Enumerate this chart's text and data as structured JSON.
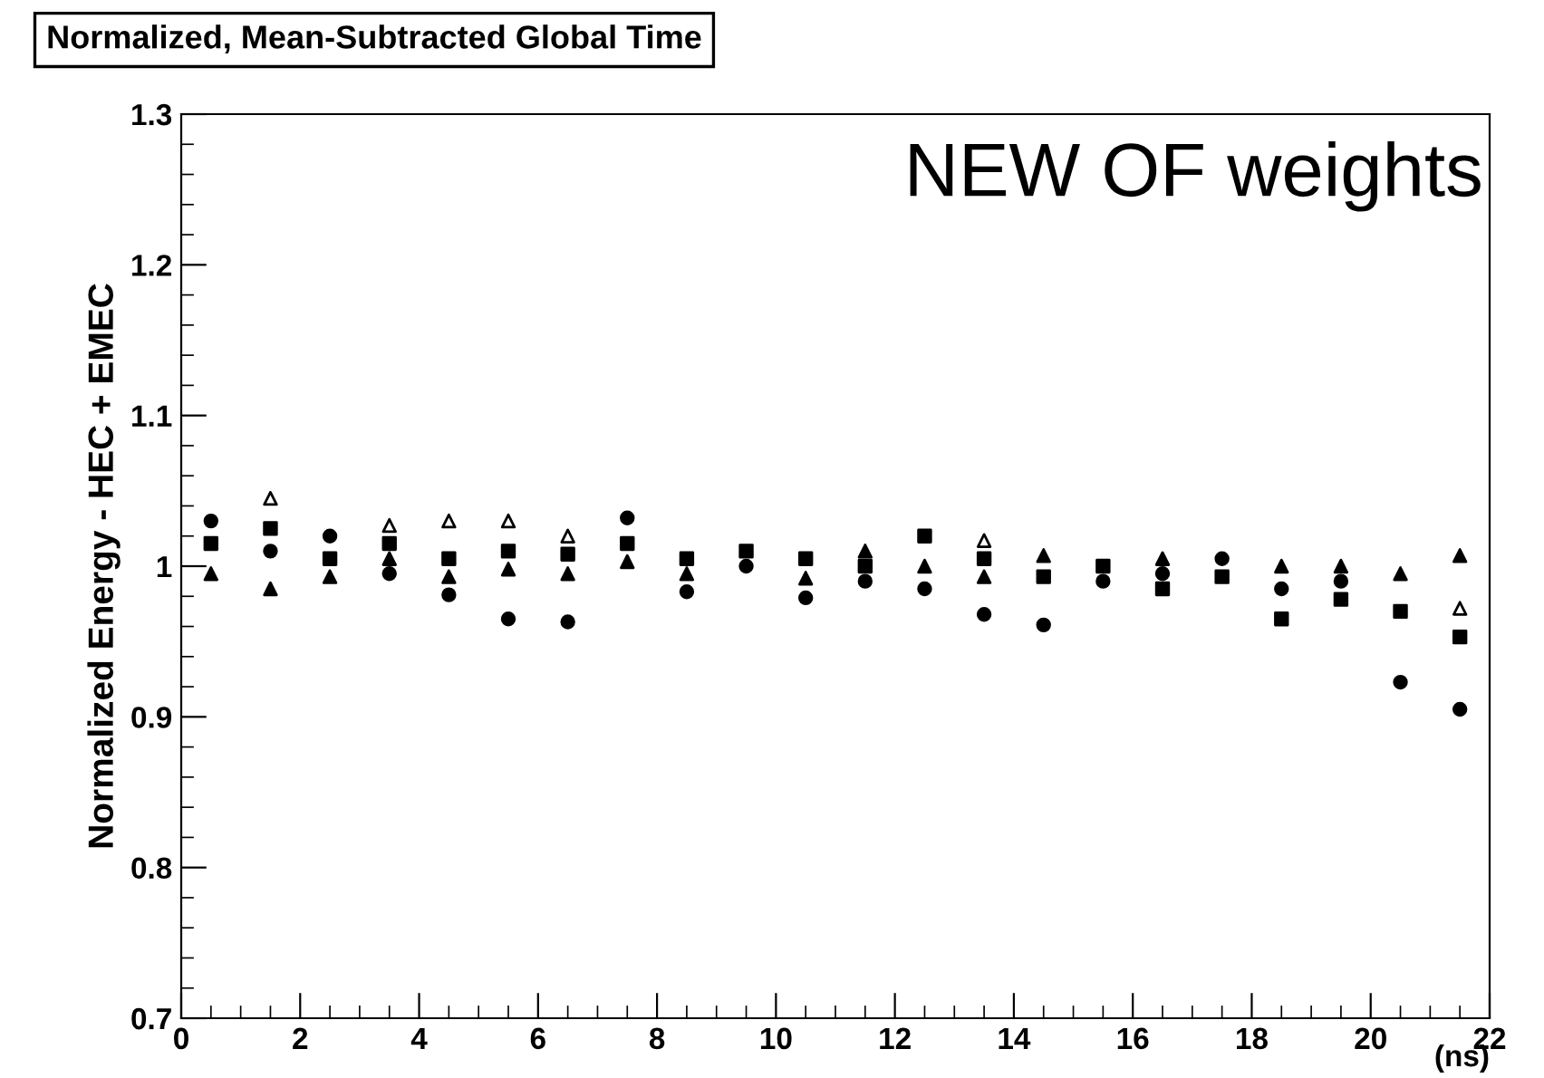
{
  "chart_data": {
    "type": "scatter",
    "title": "Normalized, Mean-Subtracted Global Time",
    "ylabel": "Normalized Energy - HEC + EMEC",
    "xlabel": "(ns)",
    "annotations": [
      "NEW OF weights"
    ],
    "x": [
      0.5,
      1.5,
      2.5,
      3.5,
      4.5,
      5.5,
      6.5,
      7.5,
      8.5,
      9.5,
      10.5,
      11.5,
      12.5,
      13.5,
      14.5,
      15.5,
      16.5,
      17.5,
      18.5,
      19.5,
      20.5,
      21.5
    ],
    "xlim": [
      0,
      22
    ],
    "xticks": [
      0,
      2,
      4,
      6,
      8,
      10,
      12,
      14,
      16,
      18,
      20,
      22
    ],
    "ylim": [
      0.7,
      1.3
    ],
    "yticks": [
      0.7,
      0.8,
      0.9,
      {
        "value": 1.0,
        "label": "1"
      },
      1.1,
      1.2,
      1.3
    ],
    "series": [
      {
        "color": "#000000",
        "marker": "triangle",
        "values": [
          null,
          1.045,
          null,
          1.027,
          1.03,
          1.03,
          1.02,
          null,
          null,
          null,
          null,
          null,
          null,
          1.017,
          null,
          null,
          null,
          null,
          null,
          null,
          null,
          0.972
        ]
      },
      {
        "color": "#000000",
        "marker": "circle",
        "values": [
          1.03,
          1.01,
          1.02,
          0.995,
          0.981,
          0.965,
          0.963,
          1.032,
          0.983,
          1.0,
          0.979,
          0.99,
          0.985,
          0.968,
          0.961,
          0.99,
          0.995,
          1.005,
          0.985,
          0.99,
          0.923,
          0.905
        ]
      },
      {
        "color": "#000000",
        "marker": "square",
        "values": [
          1.015,
          1.025,
          1.005,
          1.015,
          1.005,
          1.01,
          1.008,
          1.015,
          1.005,
          1.01,
          1.005,
          1.0,
          1.02,
          1.005,
          0.993,
          1.0,
          0.985,
          0.993,
          0.965,
          0.978,
          0.97,
          0.953
        ]
      },
      {
        "color": "#000000",
        "marker": "triangle",
        "values": [
          0.995,
          0.985,
          0.993,
          1.005,
          0.993,
          0.998,
          0.995,
          1.003,
          0.995,
          null,
          0.992,
          1.01,
          1.0,
          0.993,
          1.007,
          null,
          1.005,
          null,
          1.0,
          1.0,
          0.995,
          1.007
        ]
      }
    ]
  }
}
